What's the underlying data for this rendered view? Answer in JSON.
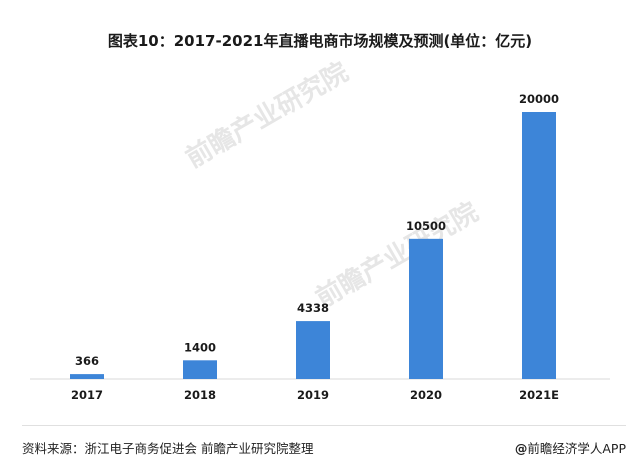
{
  "chart_data": {
    "type": "bar",
    "title": "图表10：2017-2021年直播电商市场规模及预测(单位：亿元)",
    "categories": [
      "2017",
      "2018",
      "2019",
      "2020",
      "2021E"
    ],
    "values": [
      366,
      1400,
      4338,
      10500,
      20000
    ],
    "data_labels": [
      "366",
      "1400",
      "4338",
      "10500",
      "20000"
    ],
    "xlabel": "",
    "ylabel": "",
    "ylim": [
      0,
      20000
    ],
    "grid": false,
    "legend": "none",
    "bar_color": "#3d85d8"
  },
  "watermark": {
    "text": "前瞻产业研究院"
  },
  "footer": {
    "source": "资料来源：浙江电子商务促进会 前瞻产业研究院整理",
    "brand": "前瞻经济学人APP",
    "brand_prefix": "@"
  }
}
